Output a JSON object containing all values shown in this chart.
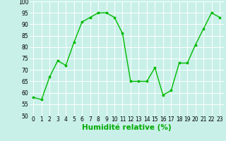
{
  "x": [
    0,
    1,
    2,
    3,
    4,
    5,
    6,
    7,
    8,
    9,
    10,
    11,
    12,
    13,
    14,
    15,
    16,
    17,
    18,
    19,
    20,
    21,
    22,
    23
  ],
  "y": [
    58,
    57,
    67,
    74,
    72,
    82,
    91,
    93,
    95,
    95,
    93,
    86,
    65,
    65,
    65,
    71,
    59,
    61,
    73,
    73,
    81,
    88,
    95,
    93
  ],
  "line_color": "#00bb00",
  "marker": "*",
  "marker_size": 2.5,
  "line_width": 1.0,
  "xlabel": "Humidité relative (%)",
  "ylim": [
    50,
    100
  ],
  "xlim": [
    -0.5,
    23.5
  ],
  "yticks": [
    50,
    55,
    60,
    65,
    70,
    75,
    80,
    85,
    90,
    95,
    100
  ],
  "xtick_labels": [
    "0",
    "1",
    "2",
    "3",
    "4",
    "5",
    "6",
    "7",
    "8",
    "9",
    "10",
    "11",
    "12",
    "13",
    "14",
    "15",
    "16",
    "17",
    "18",
    "19",
    "20",
    "21",
    "22",
    "23"
  ],
  "background_color": "#c8f0e8",
  "grid_color": "#ffffff",
  "tick_fontsize": 5.5,
  "xlabel_fontsize": 7.5,
  "xlabel_color": "#00aa00"
}
